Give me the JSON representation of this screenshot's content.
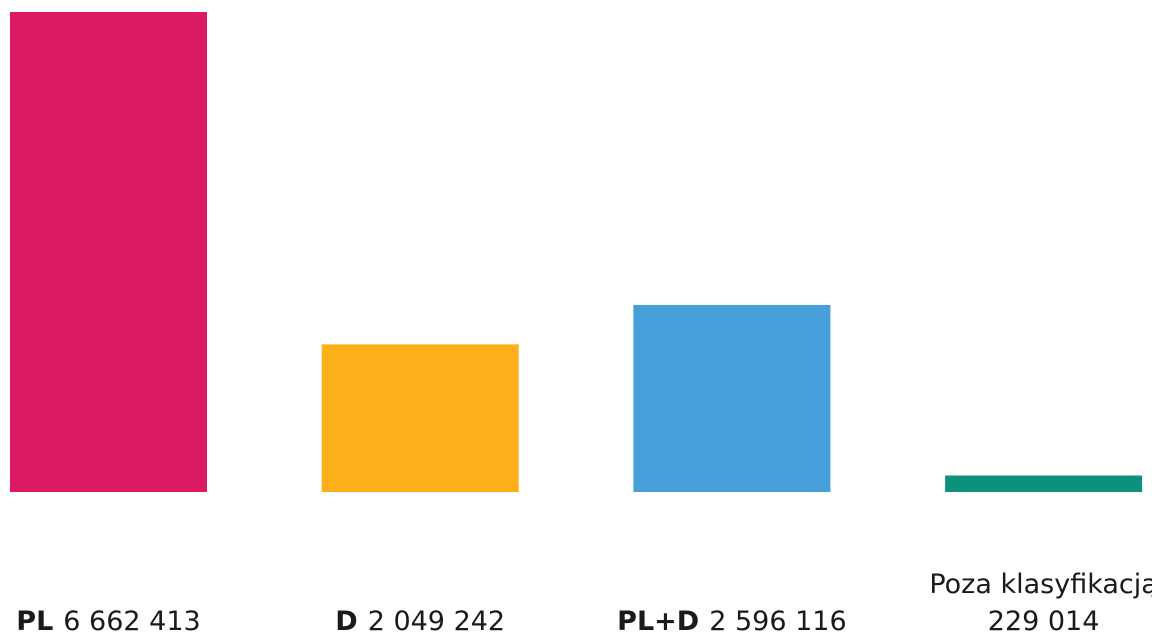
{
  "chart_data": {
    "type": "bar",
    "categories": [
      "PL",
      "D",
      "PL+D",
      "Poza klasyfikacją"
    ],
    "values": [
      6662413,
      2049242,
      2596116,
      229014
    ],
    "value_labels": [
      "6 662 413",
      "2 049 242",
      "2 596 116",
      "229 014"
    ],
    "colors": [
      "#dc1a64",
      "#fcaf19",
      "#479fd9",
      "#0d917a"
    ]
  }
}
